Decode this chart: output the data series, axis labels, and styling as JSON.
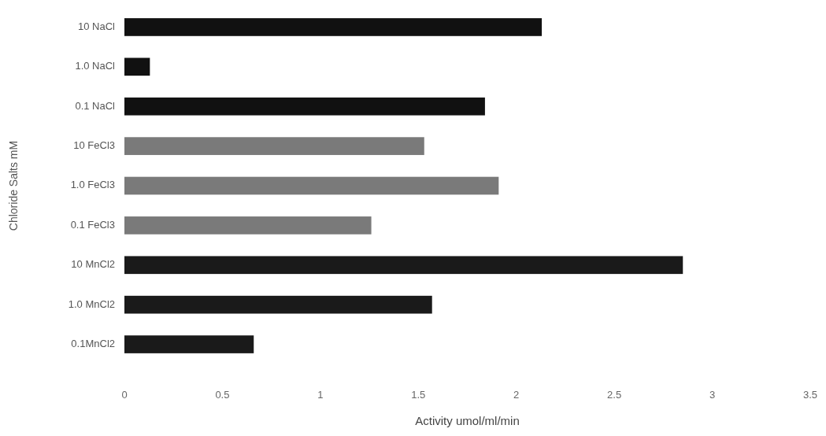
{
  "chart_data": {
    "type": "bar",
    "orientation": "horizontal",
    "xlabel": "Activity umol/ml/min",
    "ylabel": "Chloride Salts mM",
    "categories": [
      "10 NaCl",
      "1.0 NaCl",
      "0.1 NaCl",
      "10 FeCl3",
      "1.0 FeCl3",
      "0.1 FeCl3",
      "10 MnCl2",
      "1.0 MnCl2",
      "0.1MnCl2"
    ],
    "values": [
      2.13,
      0.13,
      1.84,
      1.53,
      1.91,
      1.26,
      2.85,
      1.57,
      0.66
    ],
    "colors": [
      "#111111",
      "#111111",
      "#111111",
      "#7a7a7a",
      "#7a7a7a",
      "#7a7a7a",
      "#1a1a1a",
      "#1a1a1a",
      "#1a1a1a"
    ],
    "xlim": [
      0,
      3.5
    ],
    "xticks": [
      0,
      0.5,
      1,
      1.5,
      2,
      2.5,
      3,
      3.5
    ],
    "grid": false
  }
}
